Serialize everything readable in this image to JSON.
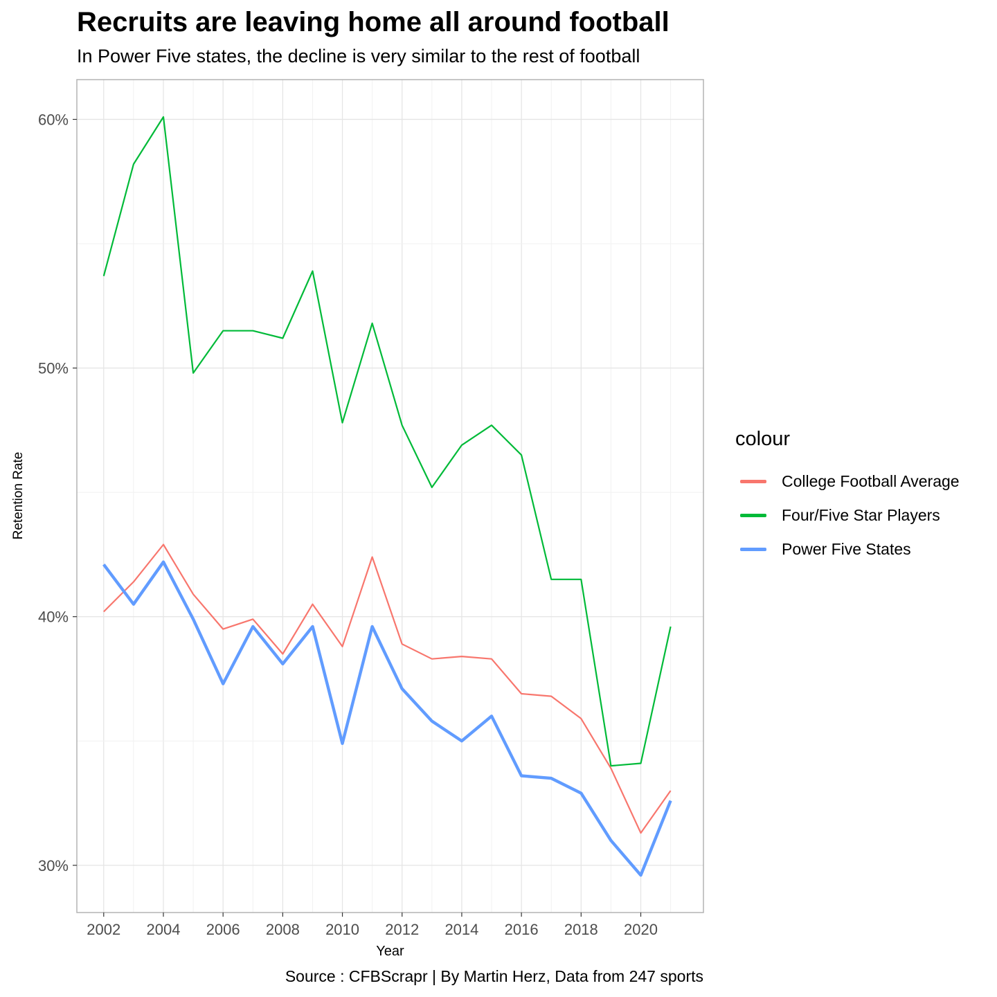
{
  "chart_data": {
    "type": "line",
    "title": "Recruits are leaving home all around football",
    "subtitle": "In Power Five states, the decline is very similar to the rest of football",
    "caption": "Source : CFBScrapr | By Martin Herz, Data from 247 sports",
    "xlabel": "Year",
    "ylabel": "Retention Rate",
    "x": [
      2002,
      2003,
      2004,
      2005,
      2006,
      2007,
      2008,
      2009,
      2010,
      2011,
      2012,
      2013,
      2014,
      2015,
      2016,
      2017,
      2018,
      2019,
      2020,
      2021
    ],
    "x_ticks": [
      "2002",
      "2004",
      "2006",
      "2008",
      "2010",
      "2012",
      "2014",
      "2016",
      "2018",
      "2020"
    ],
    "y_ticks": [
      "30%",
      "40%",
      "50%",
      "60%"
    ],
    "xlim": [
      2001.1,
      2022.1
    ],
    "ylim": [
      28.1,
      61.6
    ],
    "grid": true,
    "legend_title": "colour",
    "legend_position": "right",
    "series": [
      {
        "name": "College Football Average",
        "color": "#F8766D",
        "width": 2.2,
        "values": [
          40.2,
          41.4,
          42.9,
          40.9,
          39.5,
          39.9,
          38.5,
          40.5,
          38.8,
          42.4,
          38.9,
          38.3,
          38.4,
          38.3,
          36.9,
          36.8,
          35.9,
          33.9,
          31.3,
          33.0
        ]
      },
      {
        "name": "Four/Five Star Players",
        "color": "#00BA38",
        "width": 2.2,
        "values": [
          53.7,
          58.2,
          60.1,
          49.8,
          51.5,
          51.5,
          51.2,
          53.9,
          47.8,
          51.8,
          47.7,
          45.2,
          46.9,
          47.7,
          46.5,
          41.5,
          41.5,
          34.0,
          34.1,
          39.6
        ]
      },
      {
        "name": "Power Five States",
        "color": "#619CFF",
        "width": 4.4,
        "values": [
          42.1,
          40.5,
          42.2,
          39.9,
          37.3,
          39.6,
          38.1,
          39.6,
          34.9,
          39.6,
          37.1,
          35.8,
          35.0,
          36.0,
          33.6,
          33.5,
          32.9,
          31.0,
          29.6,
          32.6
        ]
      }
    ]
  }
}
